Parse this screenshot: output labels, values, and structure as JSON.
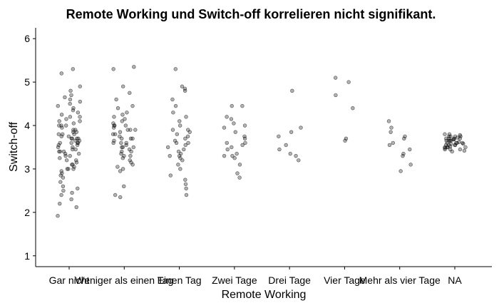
{
  "chart_data": {
    "type": "strip",
    "title": "Remote Working und Switch-off korrelieren nicht signifikant.",
    "x_label": "Remote Working",
    "y_label": "Switch-off",
    "categories": [
      "Gar nicht",
      "Weniger als einen Tag",
      "Einen Tag",
      "Zwei Tage",
      "Drei Tage",
      "Vier Tage",
      "Mehr als vier Tage",
      "NA"
    ],
    "values": [
      [
        1.92,
        2.12,
        2.2,
        2.3,
        2.4,
        2.45,
        2.55,
        2.6,
        2.7,
        2.8,
        2.85,
        2.9,
        2.95,
        3.0,
        3.0,
        3.05,
        3.1,
        3.1,
        3.15,
        3.2,
        3.2,
        3.25,
        3.3,
        3.3,
        3.35,
        3.35,
        3.4,
        3.4,
        3.45,
        3.45,
        3.5,
        3.5,
        3.55,
        3.55,
        3.6,
        3.6,
        3.6,
        3.65,
        3.65,
        3.7,
        3.7,
        3.7,
        3.75,
        3.75,
        3.8,
        3.8,
        3.85,
        3.85,
        3.9,
        3.9,
        3.95,
        4.0,
        4.0,
        4.05,
        4.1,
        4.1,
        4.15,
        4.2,
        4.2,
        4.25,
        4.3,
        4.35,
        4.4,
        4.45,
        4.5,
        4.55,
        4.6,
        4.65,
        4.7,
        4.8,
        4.9,
        5.2,
        5.3,
        3.0,
        3.7,
        3.6,
        3.4,
        4.0,
        3.8,
        2.5
      ],
      [
        2.35,
        2.4,
        2.6,
        2.95,
        3.0,
        3.05,
        3.1,
        3.15,
        3.2,
        3.25,
        3.3,
        3.35,
        3.4,
        3.45,
        3.5,
        3.5,
        3.55,
        3.6,
        3.6,
        3.65,
        3.7,
        3.7,
        3.75,
        3.8,
        3.8,
        3.85,
        3.9,
        3.9,
        3.95,
        4.0,
        4.0,
        4.05,
        4.1,
        4.15,
        4.2,
        4.25,
        4.3,
        4.4,
        4.45,
        4.6,
        4.75,
        4.9,
        5.3,
        5.35,
        3.5,
        3.6,
        3.7,
        3.3,
        3.9,
        4.0,
        3.4
      ],
      [
        2.4,
        2.55,
        2.65,
        2.75,
        2.85,
        3.0,
        3.1,
        3.2,
        3.25,
        3.3,
        3.35,
        3.4,
        3.45,
        3.5,
        3.55,
        3.6,
        3.65,
        3.7,
        3.75,
        3.8,
        3.85,
        3.9,
        3.9,
        4.0,
        4.1,
        4.2,
        4.3,
        4.45,
        4.6,
        4.8,
        4.85,
        4.9,
        5.3,
        3.6,
        3.3
      ],
      [
        2.8,
        2.9,
        3.1,
        3.25,
        3.3,
        3.35,
        3.45,
        3.5,
        3.55,
        3.6,
        3.7,
        3.75,
        3.85,
        3.95,
        4.0,
        4.05,
        4.15,
        4.2,
        4.45,
        4.45,
        3.3,
        3.6
      ],
      [
        3.2,
        3.3,
        3.35,
        3.45,
        3.55,
        3.75,
        3.85,
        3.95,
        4.8
      ],
      [
        3.65,
        3.7,
        4.4,
        4.7,
        5.0,
        5.1
      ],
      [
        2.95,
        3.1,
        3.3,
        3.35,
        3.45,
        3.55,
        3.6,
        3.7,
        3.75,
        3.85,
        3.95,
        4.1
      ],
      [
        3.4,
        3.42,
        3.45,
        3.45,
        3.48,
        3.5,
        3.5,
        3.5,
        3.52,
        3.55,
        3.55,
        3.55,
        3.58,
        3.6,
        3.6,
        3.6,
        3.62,
        3.65,
        3.65,
        3.65,
        3.68,
        3.7,
        3.7,
        3.7,
        3.72,
        3.75,
        3.75,
        3.75,
        3.78,
        3.8,
        3.8,
        3.5,
        3.6,
        3.7,
        3.55,
        3.65,
        3.45,
        3.75,
        3.58,
        3.68
      ]
    ],
    "color": "#000000",
    "ylim": [
      0.75,
      6.25
    ],
    "yticks": [
      1,
      2,
      3,
      4,
      5,
      6
    ]
  }
}
